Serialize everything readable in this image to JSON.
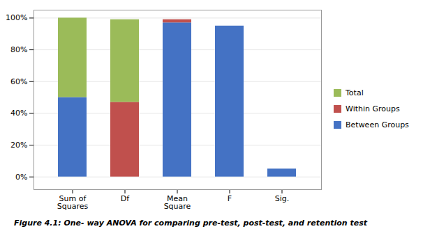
{
  "chart_data": {
    "type": "bar",
    "caption": "Figure 4.1: One- way ANOVA for comparing pre-test, post-test, and retention test",
    "categories": [
      "Sum of\nSquares",
      "Df",
      "Mean\nSquare",
      "F",
      "Sig."
    ],
    "series": [
      {
        "name": "Between Groups",
        "color": "#4472C4",
        "values": [
          50,
          0,
          97,
          95,
          5
        ]
      },
      {
        "name": "Within Groups",
        "color": "#C0504D",
        "values": [
          0,
          47,
          2,
          0,
          0
        ]
      },
      {
        "name": "Total",
        "color": "#9BBB59",
        "values": [
          50,
          52,
          0,
          0,
          0
        ]
      }
    ],
    "stacked": true,
    "ylim": [
      -8,
      105
    ],
    "yticks": [
      {
        "value": 0,
        "label": "0%"
      },
      {
        "value": 20,
        "label": "20%"
      },
      {
        "value": 40,
        "label": "40%"
      },
      {
        "value": 60,
        "label": "60%"
      },
      {
        "value": 80,
        "label": "80%"
      },
      {
        "value": 100,
        "label": "100%"
      }
    ],
    "grid": true,
    "legend": "right"
  }
}
